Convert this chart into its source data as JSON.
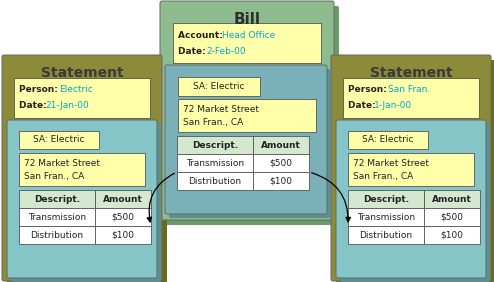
{
  "bg_color": "#ffffff",
  "bill_outer_color": "#8fbc8f",
  "bill_inner_color": "#7ab0b8",
  "bill_title": "Bill",
  "bill_title_color": "#2f2f2f",
  "bill_info_box_color": "#ffffaa",
  "bill_account_label": "Account: ",
  "bill_account_value": "Head Office",
  "bill_date_label": "Date: ",
  "bill_date_value": "2-Feb-00",
  "bill_sa_label": "SA: Electric",
  "stmt_outer_color": "#8b8b3a",
  "stmt_inner_color": "#85c5c8",
  "stmt_title": "Statement",
  "stmt_title_color": "#3a3a3a",
  "stmt_left_person_value": "Electric",
  "stmt_left_date_value": "21-Jan-00",
  "stmt_right_person_value": "San Fran.",
  "stmt_right_date_value": "1-Jan-00",
  "stmt_sa_label": "SA: Electric",
  "table_header_color": "#d4e8d0",
  "table_cell_color": "#ffffff",
  "table_col1_header": "Descript.",
  "table_col2_header": "Amount",
  "table_rows": [
    [
      "Transmission",
      "$500"
    ],
    [
      "Distribution",
      "$100"
    ]
  ],
  "info_box_color": "#ffffaa",
  "highlight_color": "#00aacc",
  "arrow_color": "#000000",
  "shadow_bill": "#6a9a6a",
  "shadow_stmt": "#6b6b20",
  "shadow_inner": "#5a9090"
}
